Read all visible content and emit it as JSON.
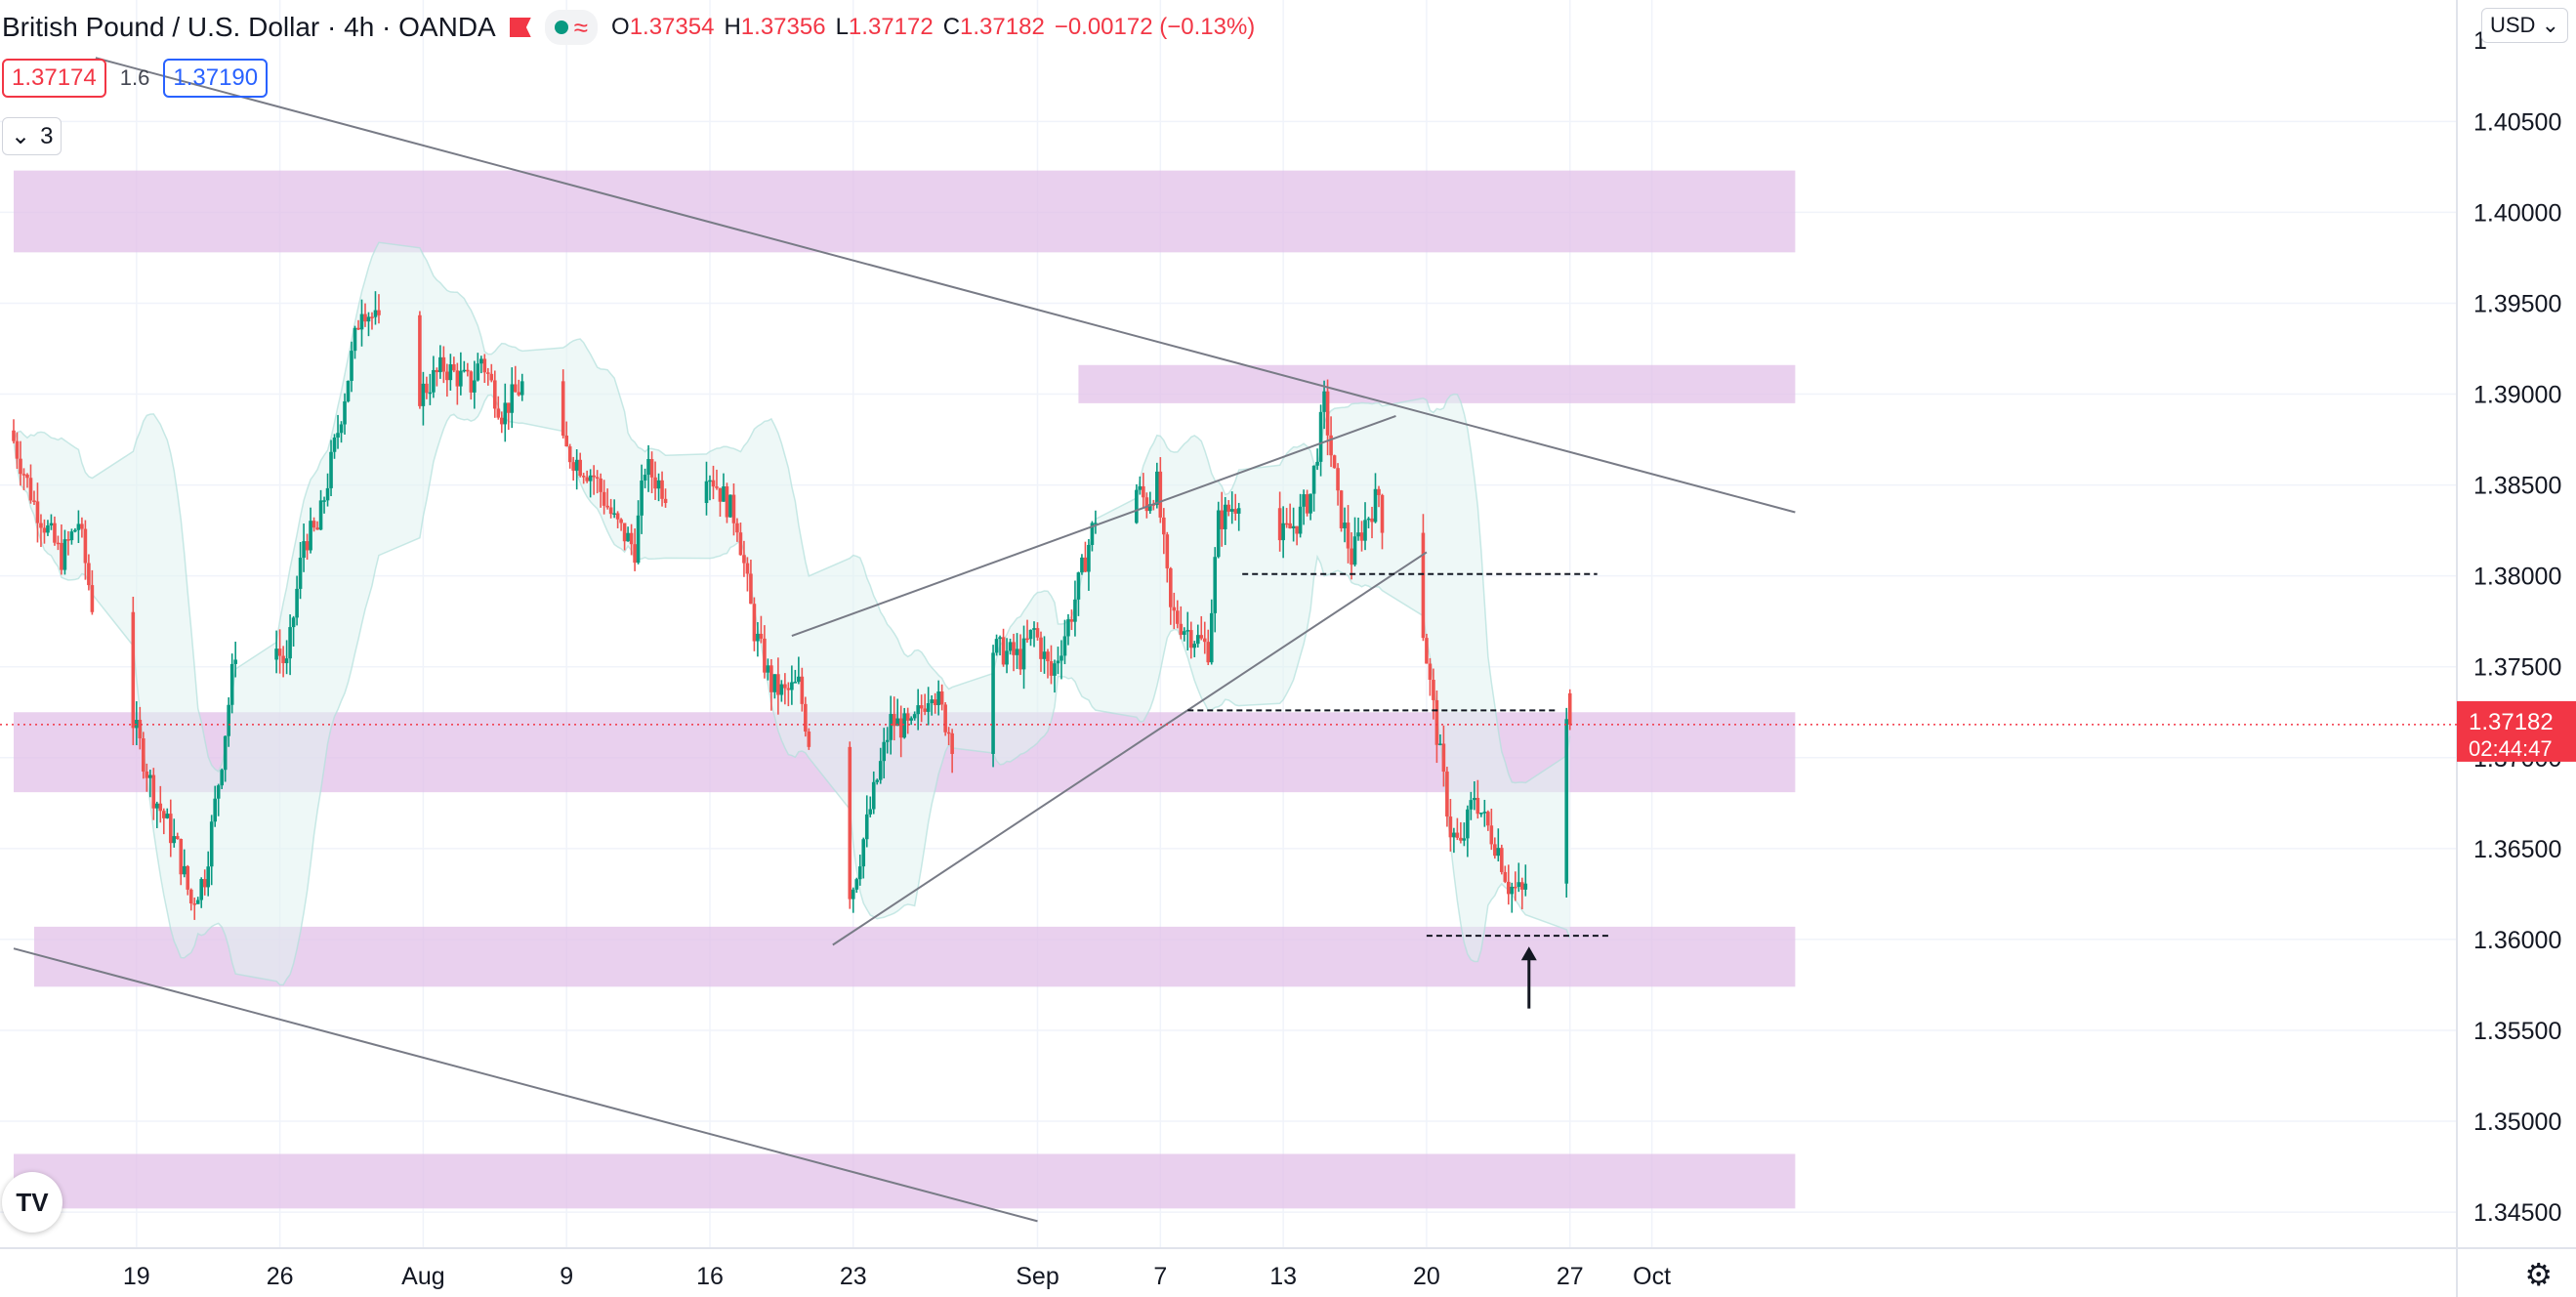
{
  "header": {
    "symbol_title": "British Pound / U.S. Dollar · 4h · OANDA",
    "ohlc": {
      "o_label": "O",
      "o": "1.37354",
      "h_label": "H",
      "h": "1.37356",
      "l_label": "L",
      "l": "1.37172",
      "c_label": "C",
      "c": "1.37182",
      "change": "−0.00172 (−0.13%)"
    },
    "indicator_icon": "wave-icon"
  },
  "trade": {
    "sell_price": "1.37174",
    "spread": "1.6",
    "buy_price": "1.37190"
  },
  "legend_toggle": {
    "count": "3"
  },
  "currency_button": "USD",
  "logo_text": "TV",
  "last_price": {
    "price": "1.37182",
    "countdown": "02:44:47",
    "color": "#f23645"
  },
  "colors": {
    "up": "#089981",
    "down": "#ef5350",
    "zone": "#e1bee7",
    "band": "#e0f2f1"
  },
  "chart_data": {
    "type": "candlestick",
    "y_axis": {
      "ticks": [
        "1.40500",
        "1.40000",
        "1.39500",
        "1.39000",
        "1.38500",
        "1.38000",
        "1.37500",
        "1.37000",
        "1.36500",
        "1.36000",
        "1.35500",
        "1.35000",
        "1.34500"
      ],
      "ylim": [
        1.3435,
        1.4105
      ],
      "top_partial_label": "1"
    },
    "x_axis": {
      "ticks": [
        "19",
        "26",
        "Aug",
        "9",
        "16",
        "23",
        "Sep",
        "7",
        "13",
        "20",
        "27",
        "Oct"
      ],
      "tick_dates": [
        "2021-07-19",
        "2021-07-26",
        "2021-08-02",
        "2021-08-09",
        "2021-08-16",
        "2021-08-23",
        "2021-09-01",
        "2021-09-07",
        "2021-09-13",
        "2021-09-20",
        "2021-09-27",
        "2021-10-01"
      ],
      "xlim": [
        "2021-07-13",
        "2021-10-08"
      ],
      "interval": "4h"
    },
    "anchors": [
      [
        "2021-07-13 00:00",
        1.388
      ],
      [
        "2021-07-14 04:00",
        1.384
      ],
      [
        "2021-07-15 12:00",
        1.381
      ],
      [
        "2021-07-16 08:00",
        1.383
      ],
      [
        "2021-07-17 12:00",
        1.375
      ],
      [
        "2021-07-19 00:00",
        1.372
      ],
      [
        "2021-07-20 00:00",
        1.368
      ],
      [
        "2021-07-21 04:00",
        1.365
      ],
      [
        "2021-07-21 20:00",
        1.362
      ],
      [
        "2021-07-22 12:00",
        1.3635
      ],
      [
        "2021-07-23 08:00",
        1.37
      ],
      [
        "2021-07-24 00:00",
        1.376
      ],
      [
        "2021-07-25 12:00",
        1.377
      ],
      [
        "2021-07-26 12:00",
        1.375
      ],
      [
        "2021-07-27 08:00",
        1.382
      ],
      [
        "2021-07-28 00:00",
        1.3825
      ],
      [
        "2021-07-29 00:00",
        1.388
      ],
      [
        "2021-07-30 04:00",
        1.395
      ],
      [
        "2021-07-30 20:00",
        1.394
      ],
      [
        "2021-07-31 12:00",
        1.3925
      ],
      [
        "2021-08-01 04:00",
        1.391
      ],
      [
        "2021-08-02 00:00",
        1.39
      ],
      [
        "2021-08-03 04:00",
        1.3915
      ],
      [
        "2021-08-04 12:00",
        1.3905
      ],
      [
        "2021-08-05 00:00",
        1.392
      ],
      [
        "2021-08-06 00:00",
        1.389
      ],
      [
        "2021-08-07 00:00",
        1.3905
      ],
      [
        "2021-08-08 00:00",
        1.389
      ],
      [
        "2021-08-09 00:00",
        1.387
      ],
      [
        "2021-08-10 12:00",
        1.3855
      ],
      [
        "2021-08-11 12:00",
        1.383
      ],
      [
        "2021-08-12 12:00",
        1.3815
      ],
      [
        "2021-08-13 00:00",
        1.386
      ],
      [
        "2021-08-14 12:00",
        1.384
      ],
      [
        "2021-08-15 12:00",
        1.381
      ],
      [
        "2021-08-16 00:00",
        1.386
      ],
      [
        "2021-08-17 12:00",
        1.383
      ],
      [
        "2021-08-18 08:00",
        1.377
      ],
      [
        "2021-08-19 04:00",
        1.374
      ],
      [
        "2021-08-19 20:00",
        1.3735
      ],
      [
        "2021-08-20 12:00",
        1.374
      ],
      [
        "2021-08-21 04:00",
        1.37
      ],
      [
        "2021-08-21 20:00",
        1.365
      ],
      [
        "2021-08-22 12:00",
        1.362
      ],
      [
        "2021-08-23 04:00",
        1.363
      ],
      [
        "2021-08-24 04:00",
        1.368
      ],
      [
        "2021-08-25 00:00",
        1.372
      ],
      [
        "2021-08-26 00:00",
        1.3715
      ],
      [
        "2021-08-27 00:00",
        1.374
      ],
      [
        "2021-08-28 08:00",
        1.37
      ],
      [
        "2021-08-29 00:00",
        1.369
      ],
      [
        "2021-08-30 00:00",
        1.376
      ],
      [
        "2021-08-31 08:00",
        1.3755
      ],
      [
        "2021-09-01 00:00",
        1.377
      ],
      [
        "2021-09-01 20:00",
        1.3745
      ],
      [
        "2021-09-02 20:00",
        1.378
      ],
      [
        "2021-09-03 12:00",
        1.381
      ],
      [
        "2021-09-04 04:00",
        1.384
      ],
      [
        "2021-09-04 20:00",
        1.388
      ],
      [
        "2021-09-05 12:00",
        1.3855
      ],
      [
        "2021-09-06 12:00",
        1.384
      ],
      [
        "2021-09-07 00:00",
        1.385
      ],
      [
        "2021-09-07 16:00",
        1.378
      ],
      [
        "2021-09-08 12:00",
        1.377
      ],
      [
        "2021-09-09 12:00",
        1.376
      ],
      [
        "2021-09-10 00:00",
        1.383
      ],
      [
        "2021-09-10 20:00",
        1.384
      ],
      [
        "2021-09-11 12:00",
        1.386
      ],
      [
        "2021-09-12 04:00",
        1.3845
      ],
      [
        "2021-09-13 00:00",
        1.382
      ],
      [
        "2021-09-13 20:00",
        1.383
      ],
      [
        "2021-09-14 12:00",
        1.3845
      ],
      [
        "2021-09-15 04:00",
        1.3895
      ],
      [
        "2021-09-15 20:00",
        1.384
      ],
      [
        "2021-09-16 12:00",
        1.381
      ],
      [
        "2021-09-17 04:00",
        1.383
      ],
      [
        "2021-09-17 20:00",
        1.3845
      ],
      [
        "2021-09-18 08:00",
        1.38
      ],
      [
        "2021-09-19 00:00",
        1.379
      ],
      [
        "2021-09-19 16:00",
        1.38
      ],
      [
        "2021-09-20 08:00",
        1.374
      ],
      [
        "2021-09-20 20:00",
        1.37
      ],
      [
        "2021-09-21 08:00",
        1.366
      ],
      [
        "2021-09-21 20:00",
        1.365
      ],
      [
        "2021-09-22 12:00",
        1.368
      ],
      [
        "2021-09-23 00:00",
        1.3665
      ],
      [
        "2021-09-23 16:00",
        1.365
      ],
      [
        "2021-09-24 04:00",
        1.363
      ],
      [
        "2021-09-24 20:00",
        1.3625
      ],
      [
        "2021-09-25 12:00",
        1.365
      ],
      [
        "2021-09-26 00:00",
        1.374
      ],
      [
        "2021-09-26 12:00",
        1.3735
      ],
      [
        "2021-09-27 00:00",
        1.3718
      ]
    ],
    "zones": [
      {
        "low": 1.3978,
        "high": 1.4023,
        "start": "2021-07-13",
        "end": "2021-10-08"
      },
      {
        "low": 1.3895,
        "high": 1.3916,
        "start": "2021-09-03",
        "end": "2021-10-08"
      },
      {
        "low": 1.3681,
        "high": 1.3725,
        "start": "2021-07-13",
        "end": "2021-10-08"
      },
      {
        "low": 1.3574,
        "high": 1.3607,
        "start": "2021-07-14",
        "end": "2021-10-08"
      },
      {
        "low": 1.3452,
        "high": 1.3482,
        "start": "2021-07-13",
        "end": "2021-10-08"
      }
    ],
    "trendlines": [
      {
        "from": [
          "2021-07-17 00:00",
          1.4085
        ],
        "to": [
          "2021-10-08 00:00",
          1.3835
        ]
      },
      {
        "from": [
          "2021-07-13 00:00",
          1.3595
        ],
        "to": [
          "2021-09-01 00:00",
          1.3445
        ]
      },
      {
        "from": [
          "2021-08-20 00:00",
          1.3767
        ],
        "to": [
          "2021-09-18 12:00",
          1.3888
        ]
      },
      {
        "from": [
          "2021-08-22 00:00",
          1.3597
        ],
        "to": [
          "2021-09-20 00:00",
          1.3813
        ]
      }
    ],
    "dashed_levels": [
      {
        "price": 1.3801,
        "start": "2021-09-11 00:00",
        "end": "2021-09-28 08:00"
      },
      {
        "price": 1.3726,
        "start": "2021-09-08 08:00",
        "end": "2021-09-26 08:00"
      },
      {
        "price": 1.3602,
        "start": "2021-09-20 00:00",
        "end": "2021-09-29 00:00"
      }
    ],
    "arrow": {
      "x": "2021-09-25 00:00",
      "from": 1.3562,
      "to": 1.3595
    },
    "last_price_line": 1.37182
  }
}
